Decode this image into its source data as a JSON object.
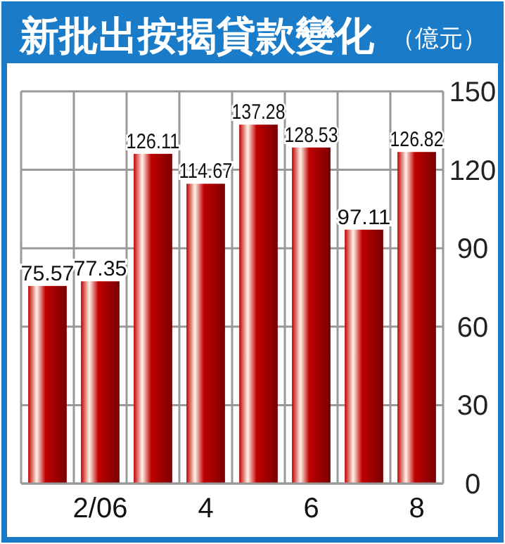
{
  "chart_data": {
    "type": "bar",
    "title": "新批出按揭貸款變化",
    "subtitle": "（億元）",
    "categories": [
      null,
      "2/06",
      null,
      "4",
      null,
      "6",
      null,
      "8"
    ],
    "values": [
      75.57,
      77.35,
      126.11,
      114.67,
      137.28,
      128.53,
      97.11,
      126.82
    ],
    "color": "#c00000",
    "ylim": [
      0,
      150
    ],
    "yticks": [
      0,
      30,
      60,
      90,
      120,
      150
    ],
    "grid": true,
    "data_labels": true
  }
}
